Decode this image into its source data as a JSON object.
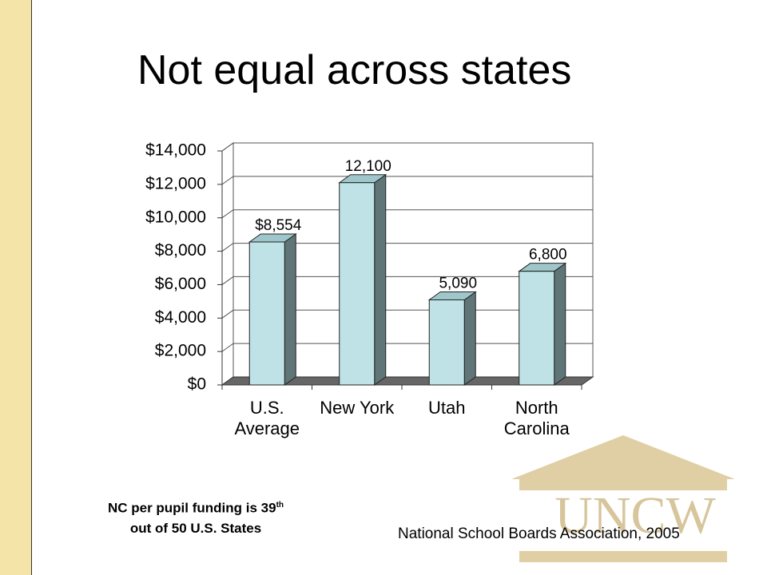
{
  "chart_data": {
    "type": "bar3d",
    "title": "Not equal across states",
    "categories": [
      "U.S. Average",
      "New York",
      "Utah",
      "North Carolina"
    ],
    "values": [
      8554,
      12100,
      5090,
      6800
    ],
    "value_labels": [
      "$8,554",
      "12,100",
      "5,090",
      "6,800"
    ],
    "color": "#bfe2e6",
    "ylim": [
      0,
      14000
    ],
    "yticks": [
      {
        "value": 0,
        "label": "$0"
      },
      {
        "value": 2000,
        "label": "$2,000"
      },
      {
        "value": 4000,
        "label": "$4,000"
      },
      {
        "value": 6000,
        "label": "$6,000"
      },
      {
        "value": 8000,
        "label": "$8,000"
      },
      {
        "value": 10000,
        "label": "$10,000"
      },
      {
        "value": 12000,
        "label": "$12,000"
      },
      {
        "value": 14000,
        "label": "$14,000"
      }
    ],
    "grid": true
  },
  "note": {
    "text": "NC per pupil funding is 39",
    "superscript": "th",
    "text2": "out of 50 U.S. States"
  },
  "source": "National School Boards Association, 2005",
  "logo": "UNCW"
}
